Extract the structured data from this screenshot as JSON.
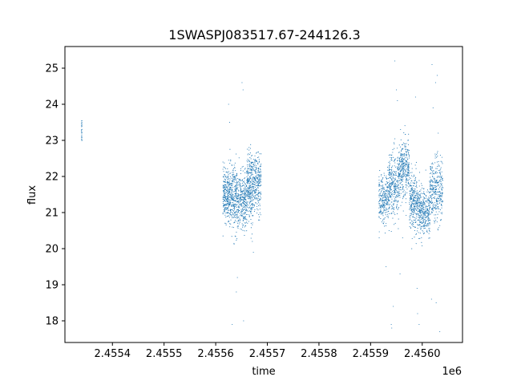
{
  "chart_data": {
    "type": "scatter",
    "title": "1SWASPJ083517.67-244126.3",
    "xlabel": "time",
    "ylabel": "flux",
    "x_offset_label": "1e6",
    "xlim": [
      2455308,
      2456078
    ],
    "ylim": [
      17.4,
      25.6
    ],
    "x_ticks": [
      2.4554,
      2.4555,
      2.4556,
      2.4557,
      2.4558,
      2.4559,
      2.456
    ],
    "x_tick_labels": [
      "2.4554",
      "2.4555",
      "2.4556",
      "2.4557",
      "2.4558",
      "2.4559",
      "2.4560"
    ],
    "y_ticks": [
      18,
      19,
      20,
      21,
      22,
      23,
      24,
      25
    ],
    "y_tick_labels": [
      "18",
      "19",
      "20",
      "21",
      "22",
      "23",
      "24",
      "25"
    ],
    "grid": false,
    "marker_color": "#1f77b4",
    "series": [
      {
        "clusters": [
          {
            "x_range": [
              2455340,
              2455341
            ],
            "y_center": 23.3,
            "y_spread": 0.35,
            "count": 25
          },
          {
            "x_range": [
              2455614,
              2455626
            ],
            "y_center": 21.5,
            "y_spread": 0.6,
            "count": 250
          },
          {
            "x_range": [
              2455626,
              2455642
            ],
            "y_center": 21.4,
            "y_spread": 0.8,
            "count": 300
          },
          {
            "x_range": [
              2455642,
              2455660
            ],
            "y_center": 21.3,
            "y_spread": 0.7,
            "count": 300
          },
          {
            "x_range": [
              2455660,
              2455672
            ],
            "y_center": 21.7,
            "y_spread": 0.9,
            "count": 280
          },
          {
            "x_range": [
              2455672,
              2455688
            ],
            "y_center": 21.8,
            "y_spread": 0.7,
            "count": 260
          },
          {
            "x_range": [
              2455916,
              2455935
            ],
            "y_center": 21.4,
            "y_spread": 0.6,
            "count": 260
          },
          {
            "x_range": [
              2455935,
              2455955
            ],
            "y_center": 21.7,
            "y_spread": 0.9,
            "count": 330
          },
          {
            "x_range": [
              2455955,
              2455975
            ],
            "y_center": 22.2,
            "y_spread": 0.7,
            "count": 330
          },
          {
            "x_range": [
              2455975,
              2455995
            ],
            "y_center": 21.3,
            "y_spread": 0.7,
            "count": 330
          },
          {
            "x_range": [
              2455995,
              2456015
            ],
            "y_center": 21.0,
            "y_spread": 0.6,
            "count": 300
          },
          {
            "x_range": [
              2456015,
              2456040
            ],
            "y_center": 21.6,
            "y_spread": 0.8,
            "count": 340
          }
        ],
        "outliers": [
          [
            2455625,
            24.0
          ],
          [
            2455627,
            23.5
          ],
          [
            2455651,
            24.6
          ],
          [
            2455653,
            24.4
          ],
          [
            2455640,
            18.8
          ],
          [
            2455642,
            19.2
          ],
          [
            2455632,
            17.9
          ],
          [
            2455654,
            18.0
          ],
          [
            2455671,
            20.2
          ],
          [
            2455673,
            19.9
          ],
          [
            2455947,
            25.2
          ],
          [
            2455950,
            24.4
          ],
          [
            2455952,
            24.1
          ],
          [
            2455958,
            23.3
          ],
          [
            2455944,
            18.4
          ],
          [
            2455940,
            17.9
          ],
          [
            2455941,
            17.8
          ],
          [
            2455957,
            19.3
          ],
          [
            2455987,
            24.2
          ],
          [
            2455991,
            18.2
          ],
          [
            2455994,
            17.9
          ],
          [
            2456019,
            25.1
          ],
          [
            2456029,
            24.8
          ],
          [
            2456026,
            24.6
          ],
          [
            2456021,
            23.9
          ],
          [
            2456031,
            23.2
          ],
          [
            2456018,
            18.6
          ],
          [
            2456027,
            18.5
          ],
          [
            2456034,
            17.7
          ],
          [
            2455990,
            18.9
          ],
          [
            2455930,
            19.5
          ],
          [
            2455962,
            20.3
          ]
        ]
      }
    ]
  }
}
